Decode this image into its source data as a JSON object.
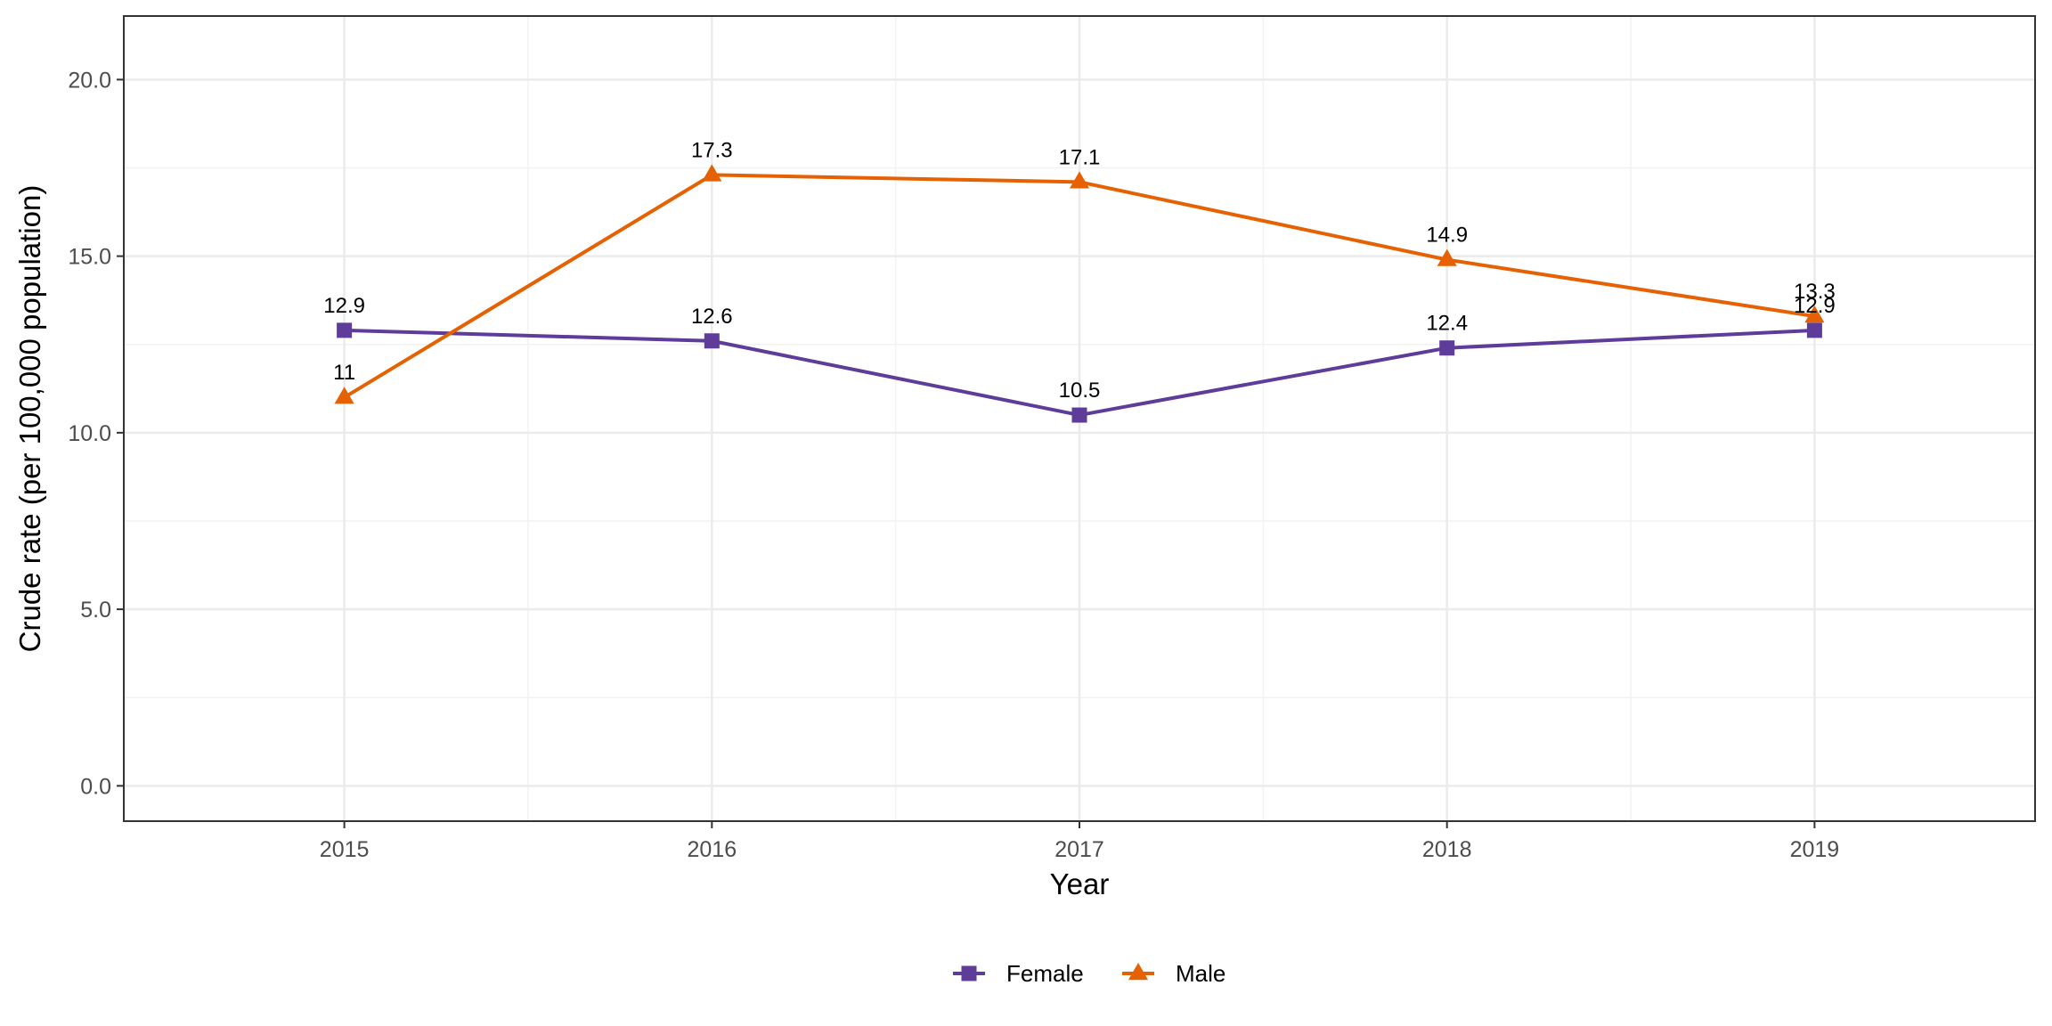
{
  "chart_data": {
    "type": "line",
    "xlabel": "Year",
    "ylabel": "Crude rate (per 100,000 population)",
    "categories": [
      "2015",
      "2016",
      "2017",
      "2018",
      "2019"
    ],
    "ylim": [
      -1,
      21.8
    ],
    "yticks": [
      0,
      5,
      10,
      15,
      20
    ],
    "ytick_labels": [
      "0.0",
      "5.0",
      "10.0",
      "15.0",
      "20.0"
    ],
    "grid": true,
    "legend_position": "bottom",
    "series": [
      {
        "name": "Female",
        "values": [
          12.9,
          12.6,
          10.5,
          12.4,
          12.9
        ],
        "labels": [
          "12.9",
          "12.6",
          "10.5",
          "12.4",
          "12.9"
        ],
        "color": "#5e3c99",
        "marker": "square"
      },
      {
        "name": "Male",
        "values": [
          11,
          17.3,
          17.1,
          14.9,
          13.3
        ],
        "labels": [
          "11",
          "17.3",
          "17.1",
          "14.9",
          "13.3"
        ],
        "color": "#e66101",
        "marker": "triangle"
      }
    ]
  }
}
